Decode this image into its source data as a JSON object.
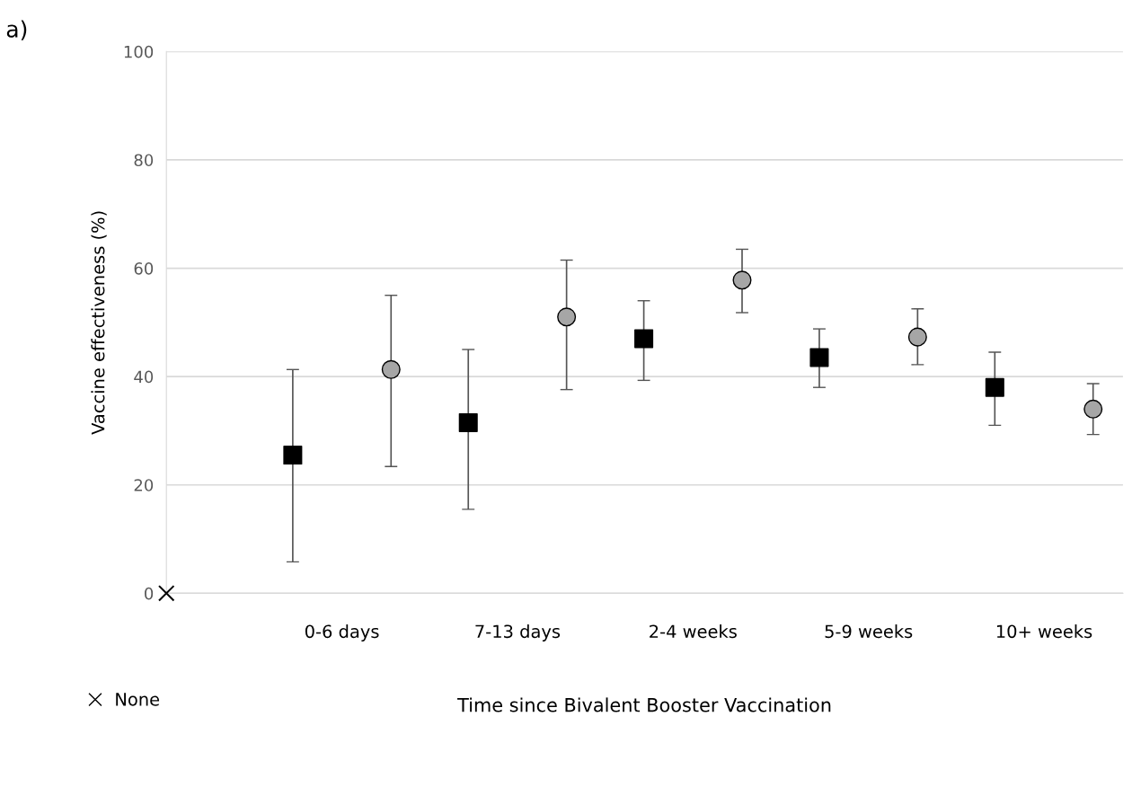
{
  "chart_data": {
    "type": "scatter",
    "title": "a)",
    "xlabel": "Time since Bivalent Booster Vaccination",
    "ylabel": "Vaccine effectiveness (%)",
    "categories": [
      null,
      "0-6 days",
      "7-13 days",
      "2-4 weeks",
      "5-9 weeks",
      "10+ weeks"
    ],
    "ylim": [
      0,
      100
    ],
    "yticks": [
      0,
      20,
      40,
      60,
      80,
      100
    ],
    "grid": "y",
    "legend": "bottom left",
    "series": [
      {
        "name": "None",
        "color": "#000000",
        "marker": "cross",
        "values": [
          0,
          null,
          null,
          null,
          null,
          null
        ]
      },
      {
        "color": "#000000",
        "marker": "square",
        "values": [
          null,
          25.5,
          31.5,
          47,
          43.5,
          38
        ],
        "errors": [
          null,
          [
            5.8,
            41.3
          ],
          [
            15.5,
            45
          ],
          [
            39.3,
            54
          ],
          [
            38,
            48.8
          ],
          [
            31,
            44.5
          ]
        ]
      },
      {
        "color": "#a6a6a6",
        "marker": "circle",
        "values": [
          null,
          41.3,
          51,
          57.8,
          47.3,
          34
        ],
        "errors": [
          null,
          [
            23.4,
            55
          ],
          [
            37.6,
            61.5
          ],
          [
            51.8,
            63.5
          ],
          [
            42.2,
            52.5
          ],
          [
            29.3,
            38.7
          ]
        ]
      }
    ]
  }
}
